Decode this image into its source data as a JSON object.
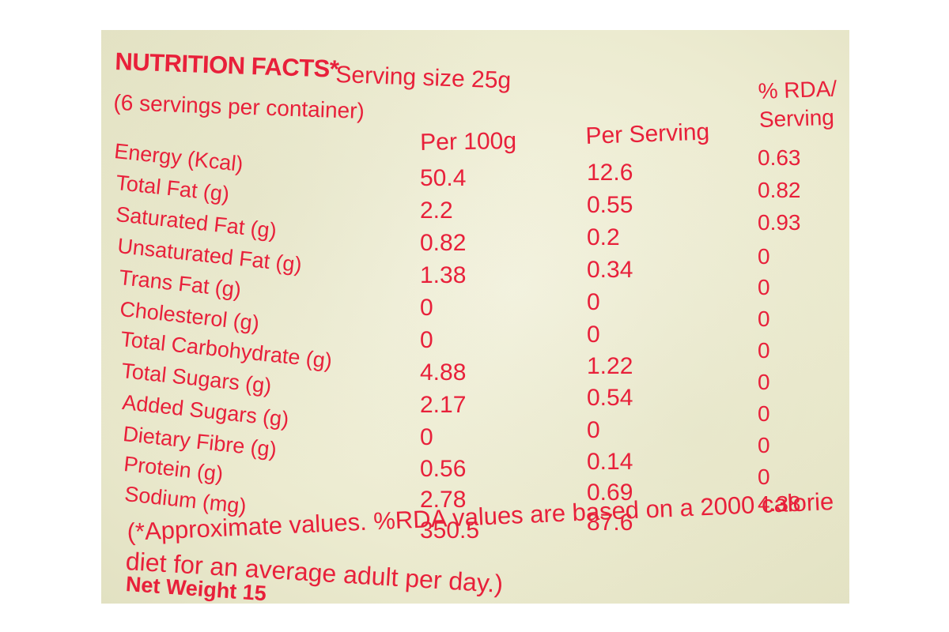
{
  "header": {
    "title": "NUTRITION FACTS*",
    "serving_size": "Serving size 25g",
    "servings_per_container": "(6 servings per container)"
  },
  "columns": {
    "per_100g": "Per 100g",
    "per_serving": "Per Serving",
    "rda": "% RDA/ Serving"
  },
  "nutrients": [
    "Energy (Kcal)",
    "Total Fat (g)",
    "Saturated Fat (g)",
    "Unsaturated Fat (g)",
    "Trans Fat (g)",
    "Cholesterol (g)",
    "Total Carbohydrate (g)",
    "Total Sugars (g)",
    "Added Sugars (g)",
    "Dietary Fibre (g)",
    "Protein (g)",
    "Sodium (mg)"
  ],
  "per_100g_values": [
    "50.4",
    "2.2",
    "0.82",
    "1.38",
    "0",
    "0",
    "4.88",
    "2.17",
    "0",
    "0.56",
    "2.78",
    "350.5"
  ],
  "per_serving_values": [
    "12.6",
    "0.55",
    "0.2",
    "0.34",
    "0",
    "0",
    "1.22",
    "0.54",
    "0",
    "0.14",
    "0.69",
    "87.6"
  ],
  "rda_values": [
    "0.63",
    "0.82",
    "0.93",
    "0",
    "0",
    "0",
    "0",
    "0",
    "0",
    "0",
    "0",
    "4.38"
  ],
  "footnote": {
    "line1": "(*Approximate values. %RDA values are based on a 2000 calorie",
    "line2": "diet for an average adult per day.)"
  },
  "net_weight": "Net Weight 15",
  "colors": {
    "ink": "#e8203a",
    "background": "#ecebd0"
  }
}
